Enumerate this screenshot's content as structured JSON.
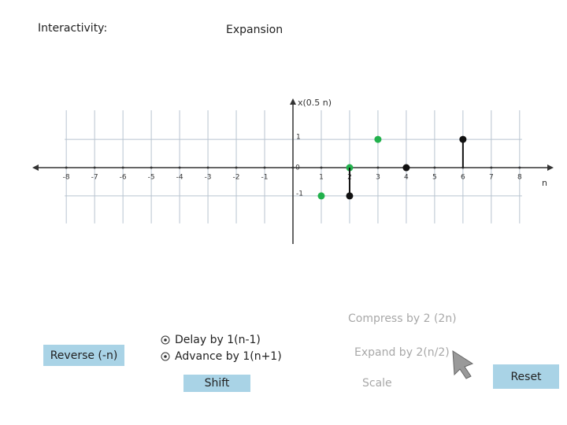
{
  "ui": {
    "interactivity": "Interactivity:",
    "heading": "Expansion",
    "reverse": "Reverse (-n)",
    "delay": "Delay by 1(n-1)",
    "advance": "Advance by 1(n+1)",
    "shift": "Shift",
    "compress": "Compress by 2 (2n)",
    "expand": "Expand by 2(n/2)",
    "scale": "Scale",
    "reset": "Reset"
  },
  "chart_data": {
    "type": "stem",
    "ylabel": "x(0.5 n)",
    "xlabel": "n",
    "xlim": [
      -9.2,
      9.2
    ],
    "ylim": [
      -2.7,
      2.45
    ],
    "xticks": [
      -8,
      -7,
      -6,
      -5,
      -4,
      -3,
      -2,
      -1,
      0,
      1,
      2,
      3,
      4,
      5,
      6,
      7,
      8
    ],
    "yticks": [
      -1,
      1
    ],
    "grid": true,
    "series": [
      {
        "color": "#22b14c",
        "stem": false,
        "x": [
          1,
          2,
          3
        ],
        "values": [
          -1,
          0,
          1
        ]
      },
      {
        "color": "#111111",
        "stem": true,
        "x": [
          2,
          4,
          6
        ],
        "values": [
          -1,
          0,
          1
        ]
      }
    ]
  }
}
